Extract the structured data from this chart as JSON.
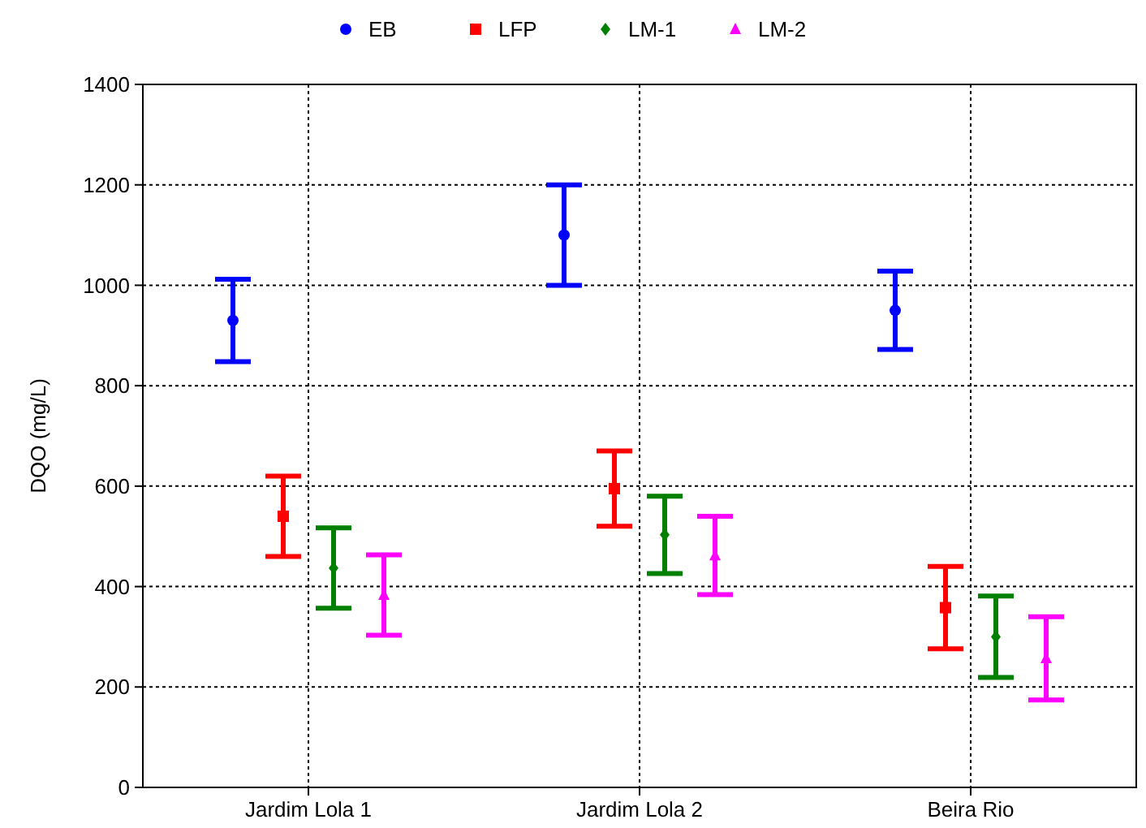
{
  "chart_data": {
    "type": "scatter",
    "ylabel": "DQO (mg/L)",
    "categories": [
      "Jardim Lola 1",
      "Jardim Lola 2",
      "Beira Rio"
    ],
    "ylim": [
      0,
      1400
    ],
    "yticks": [
      0,
      200,
      400,
      600,
      800,
      1000,
      1200,
      1400
    ],
    "grid": true,
    "legend": "top",
    "series": [
      {
        "name": "EB",
        "color": "#0000ff",
        "marker": "circle",
        "values": [
          930,
          1100,
          950
        ],
        "errors": [
          82,
          100,
          78
        ]
      },
      {
        "name": "LFP",
        "color": "#ff0000",
        "marker": "square",
        "values": [
          540,
          595,
          358
        ],
        "errors": [
          80,
          75,
          82
        ]
      },
      {
        "name": "LM-1",
        "color": "#008000",
        "marker": "diamond",
        "values": [
          437,
          503,
          300
        ],
        "errors": [
          80,
          77,
          81
        ]
      },
      {
        "name": "LM-2",
        "color": "#ff00ff",
        "marker": "triangle",
        "values": [
          383,
          462,
          257
        ],
        "errors": [
          80,
          78,
          83
        ]
      }
    ]
  }
}
